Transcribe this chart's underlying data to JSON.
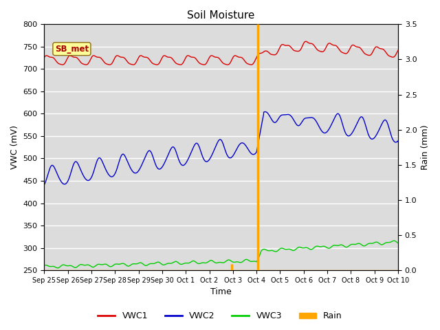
{
  "title": "Soil Moisture",
  "xlabel": "Time",
  "ylabel_left": "VWC (mV)",
  "ylabel_right": "Rain (mm)",
  "ylim_left": [
    250,
    800
  ],
  "ylim_right": [
    0.0,
    3.5
  ],
  "yticks_left": [
    250,
    300,
    350,
    400,
    450,
    500,
    550,
    600,
    650,
    700,
    750,
    800
  ],
  "yticks_right": [
    0.0,
    0.5,
    1.0,
    1.5,
    2.0,
    2.5,
    3.0,
    3.5
  ],
  "annotation_label": "SB_met",
  "vline_color": "#FFA500",
  "colors": {
    "VWC1": "#DD0000",
    "VWC2": "#0000CC",
    "VWC3": "#00CC00",
    "Rain": "#FFA500"
  },
  "background_color": "#DCDCDC",
  "xtick_labels": [
    "Sep 25",
    "Sep 26",
    "Sep 27",
    "Sep 28",
    "Sep 29",
    "Sep 30",
    "Oct 1",
    "Oct 2",
    "Oct 3",
    "Oct 4",
    "Oct 5",
    "Oct 6",
    "Oct 7",
    "Oct 8",
    "Oct 9",
    "Oct 10"
  ]
}
